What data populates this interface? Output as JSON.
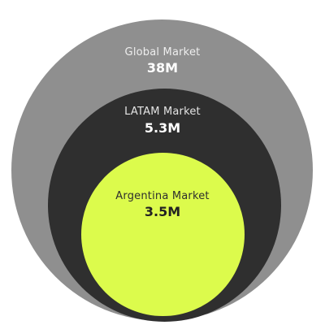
{
  "colors": {
    "global": "#8f8f8f",
    "latam": "#2f2f2f",
    "argentina": "#dcfb4c"
  },
  "markets": {
    "global": {
      "name": "Global Market",
      "value": "38M"
    },
    "latam": {
      "name": "LATAM Market",
      "value": "5.3M"
    },
    "argentina": {
      "name": "Argentina Market",
      "value": "3.5M"
    }
  }
}
